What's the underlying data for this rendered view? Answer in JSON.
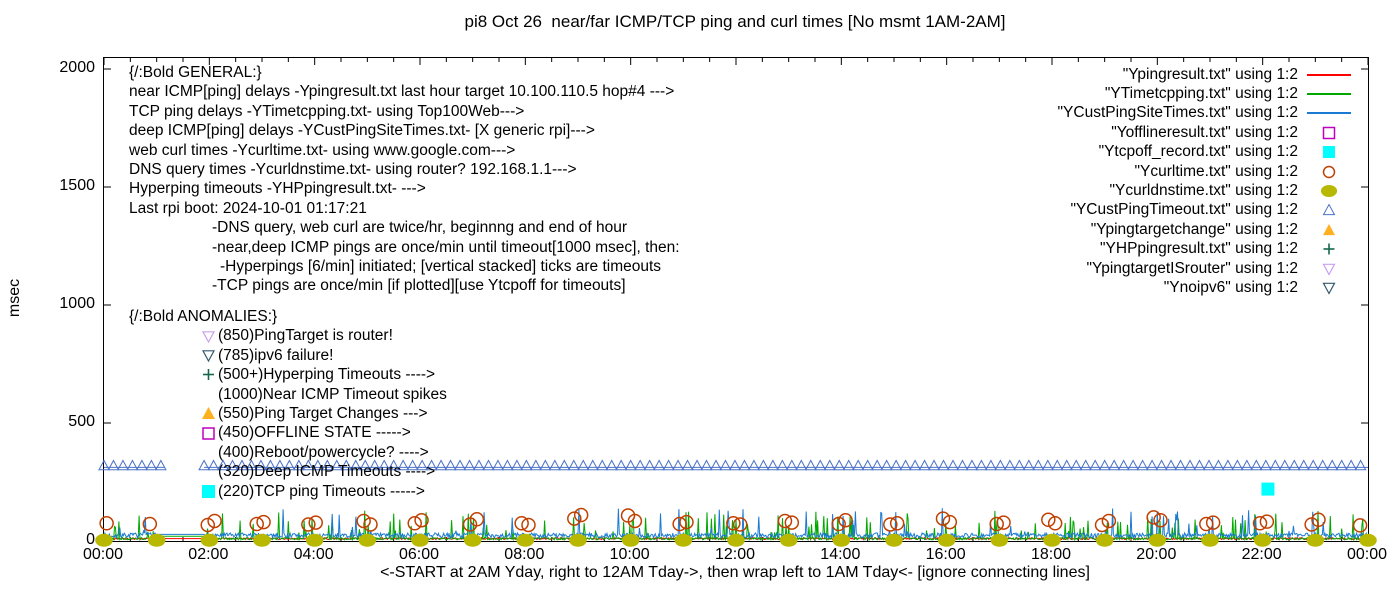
{
  "title": "pi8 Oct 26  near/far ICMP/TCP ping and curl times [No msmt 1AM-2AM]",
  "ylabel": "msec",
  "caption": "<-START at 2AM Yday, right to 12AM Tday->, then wrap left to 1AM Tday<- [ignore connecting lines]",
  "general": {
    "header": "{/:Bold GENERAL:}",
    "lines": [
      {
        "indent": 0,
        "text": "near ICMP[ping] delays -Ypingresult.txt last hour target 10.100.110.5 hop#4 --->"
      },
      {
        "indent": 0,
        "text": "TCP ping delays -YTimetcpping.txt- using Top100Web--->"
      },
      {
        "indent": 0,
        "text": "deep ICMP[ping] delays -YCustPingSiteTimes.txt- [X generic rpi]--->"
      },
      {
        "indent": 0,
        "text": "web curl times -Ycurltime.txt- using www.google.com--->"
      },
      {
        "indent": 0,
        "text": "DNS query times -Ycurldnstime.txt- using router? 192.168.1.1--->"
      },
      {
        "indent": 0,
        "text": "Hyperping timeouts -YHPpingresult.txt- --->"
      },
      {
        "indent": 0,
        "text": "Last rpi boot: 2024-10-01 01:17:21"
      },
      {
        "indent": 1,
        "text": "-DNS query, web curl are twice/hr, beginnng and end of hour"
      },
      {
        "indent": 1,
        "text": "-near,deep ICMP pings are once/min until timeout[1000 msec], then:"
      },
      {
        "indent": 2,
        "text": "-Hyperpings [6/min] initiated; [vertical stacked] ticks are timeouts"
      },
      {
        "indent": 1,
        "text": "-TCP pings are once/min [if plotted][use Ytcpoff for timeouts]"
      }
    ]
  },
  "anomalies": {
    "header": "{/:Bold ANOMALIES:}",
    "items": [
      {
        "marker": "tri-down-open",
        "color": "#c9a0ef",
        "text": "(850)PingTarget is router!"
      },
      {
        "marker": "tri-down-open",
        "color": "#33596f",
        "text": "(785)ipv6 failure!"
      },
      {
        "marker": "plus",
        "color": "#15684a",
        "text": "(500+)Hyperping Timeouts ---->"
      },
      {
        "marker": "none",
        "color": "",
        "text": "(1000)Near ICMP Timeout spikes"
      },
      {
        "marker": "tri-up-filled",
        "color": "#ffb020",
        "text": "(550)Ping Target Changes --->"
      },
      {
        "marker": "square-open",
        "color": "#bf00bf",
        "text": "(450)OFFLINE STATE ----->"
      },
      {
        "marker": "none",
        "color": "",
        "text": "(400)Reboot/powercycle? ---->"
      },
      {
        "marker": "none",
        "color": "",
        "text": "(320)Deep ICMP Timeouts ---->"
      },
      {
        "marker": "square-filled",
        "color": "#00ffff",
        "text": "(220)TCP ping Timeouts ----->"
      }
    ]
  },
  "legend": {
    "items": [
      {
        "label": "\"Ypingresult.txt\" using 1:2",
        "style": "line",
        "marker": "",
        "color": "#ff0000"
      },
      {
        "label": "\"YTimetcpping.txt\" using 1:2",
        "style": "line",
        "marker": "",
        "color": "#00a800"
      },
      {
        "label": "\"YCustPingSiteTimes.txt\" using 1:2",
        "style": "line",
        "marker": "",
        "color": "#1b7ad1"
      },
      {
        "label": "\"Yofflineresult.txt\" using 1:2",
        "style": "points",
        "marker": "square-open",
        "color": "#bf00bf"
      },
      {
        "label": "\"Ytcpoff_record.txt\" using 1:2",
        "style": "points",
        "marker": "square-filled",
        "color": "#00ffff"
      },
      {
        "label": "\"Ycurltime.txt\" using 1:2",
        "style": "points",
        "marker": "circle-open",
        "color": "#c04000"
      },
      {
        "label": "\"Ycurldnstime.txt\" using 1:2",
        "style": "points",
        "marker": "circle-filled",
        "color": "#b8b800"
      },
      {
        "label": "\"YCustPingTimeout.txt\" using 1:2",
        "style": "points",
        "marker": "tri-up-open",
        "color": "#4a72c8"
      },
      {
        "label": "\"Ypingtargetchange\" using 1:2",
        "style": "points",
        "marker": "tri-up-filled",
        "color": "#ffb020"
      },
      {
        "label": "\"YHPpingresult.txt\" using 1:2",
        "style": "points",
        "marker": "plus",
        "color": "#15684a"
      },
      {
        "label": "\"YpingtargetISrouter\" using 1:2",
        "style": "points",
        "marker": "tri-down-open",
        "color": "#c9a0ef"
      },
      {
        "label": "\"Ynoipv6\" using 1:2",
        "style": "points",
        "marker": "tri-down-open",
        "color": "#33596f"
      }
    ]
  },
  "chart_data": {
    "type": "mixed-time-series",
    "title": "pi8 Oct 26  near/far ICMP/TCP ping and curl times [No msmt 1AM-2AM]",
    "xlabel": "<-START at 2AM Yday, right to 12AM Tday->, then wrap left to 1AM Tday<- [ignore connecting lines]",
    "ylabel": "msec",
    "xlim_hours": [
      0,
      24
    ],
    "ylim": [
      0,
      2000
    ],
    "ytick_values": [
      0,
      500,
      1000,
      1500,
      2000
    ],
    "xtick_hours": [
      0,
      2,
      4,
      6,
      8,
      10,
      12,
      14,
      16,
      18,
      20,
      22,
      24
    ],
    "xtick_labels": [
      "00:00",
      "02:00",
      "04:00",
      "06:00",
      "08:00",
      "10:00",
      "12:00",
      "14:00",
      "16:00",
      "18:00",
      "20:00",
      "22:00",
      "00:00"
    ],
    "minor_xtick_step_hours": 0.5,
    "grid": false,
    "legend_position": "inside top right",
    "no_measurement_gap_hours": [
      1.0,
      1.9
    ],
    "series": [
      {
        "name": "Ypingresult.txt",
        "kind": "noise-line",
        "color": "#ff0000",
        "baseline_msec": 10,
        "jitter_msec": 4,
        "spike_prob": 0,
        "spike_range_msec": [
          0,
          0
        ],
        "gap_hours": [
          1.0,
          1.9
        ],
        "gap_level_msec": 10,
        "seed": 21
      },
      {
        "name": "YTimetcpping.txt",
        "kind": "noise-line",
        "color": "#00a800",
        "baseline_msec": 10,
        "jitter_msec": 5,
        "spike_prob": 0.09,
        "spike_range_msec": [
          30,
          130
        ],
        "gap_hours": [
          1.0,
          1.9
        ],
        "gap_level_msec": 20,
        "seed": 13
      },
      {
        "name": "YCustPingSiteTimes.txt",
        "kind": "noise-line",
        "color": "#1b7ad1",
        "baseline_msec": 24,
        "jitter_msec": 10,
        "spike_prob": 0.05,
        "spike_range_msec": [
          40,
          140
        ],
        "gap_hours": [
          1.0,
          1.9
        ],
        "gap_level_msec": 28,
        "seed": 7
      },
      {
        "name": "Yofflineresult.txt",
        "kind": "points",
        "marker": "square-open",
        "color": "#bf00bf",
        "points": []
      },
      {
        "name": "Ytcpoff_record.txt",
        "kind": "points",
        "marker": "square-filled",
        "color": "#00ffff",
        "points": [
          [
            22.1,
            220
          ]
        ]
      },
      {
        "name": "Ycurltime.txt",
        "kind": "points",
        "marker": "circle-open",
        "color": "#c04000",
        "points": [
          [
            0.05,
            75
          ],
          [
            0.87,
            72
          ],
          [
            1.97,
            68
          ],
          [
            2.1,
            85
          ],
          [
            2.9,
            72
          ],
          [
            3.03,
            80
          ],
          [
            3.88,
            70
          ],
          [
            4.02,
            78
          ],
          [
            4.93,
            85
          ],
          [
            5.06,
            70
          ],
          [
            5.9,
            75
          ],
          [
            6.03,
            88
          ],
          [
            6.95,
            70
          ],
          [
            7.08,
            92
          ],
          [
            7.93,
            75
          ],
          [
            8.06,
            68
          ],
          [
            8.93,
            95
          ],
          [
            9.06,
            110
          ],
          [
            9.95,
            108
          ],
          [
            10.08,
            85
          ],
          [
            10.93,
            72
          ],
          [
            11.06,
            80
          ],
          [
            11.95,
            75
          ],
          [
            12.08,
            70
          ],
          [
            12.93,
            85
          ],
          [
            13.06,
            78
          ],
          [
            13.95,
            72
          ],
          [
            14.08,
            88
          ],
          [
            14.93,
            70
          ],
          [
            15.06,
            75
          ],
          [
            15.93,
            95
          ],
          [
            16.06,
            80
          ],
          [
            16.95,
            72
          ],
          [
            17.08,
            78
          ],
          [
            17.93,
            90
          ],
          [
            18.06,
            75
          ],
          [
            18.95,
            68
          ],
          [
            19.08,
            85
          ],
          [
            19.93,
            100
          ],
          [
            20.06,
            88
          ],
          [
            20.93,
            72
          ],
          [
            21.06,
            78
          ],
          [
            21.95,
            75
          ],
          [
            22.08,
            82
          ],
          [
            22.93,
            70
          ],
          [
            23.06,
            90
          ],
          [
            23.85,
            66
          ]
        ]
      },
      {
        "name": "Ycurldnstime.txt",
        "kind": "points",
        "marker": "circle-filled",
        "color": "#b8b800",
        "points": [
          [
            0,
            3
          ],
          [
            1,
            3
          ],
          [
            2,
            3
          ],
          [
            3,
            3
          ],
          [
            4,
            3
          ],
          [
            5,
            3
          ],
          [
            6,
            3
          ],
          [
            7,
            3
          ],
          [
            8,
            3
          ],
          [
            9,
            3
          ],
          [
            10,
            3
          ],
          [
            11,
            3
          ],
          [
            12,
            3
          ],
          [
            13,
            3
          ],
          [
            14,
            3
          ],
          [
            15,
            3
          ],
          [
            16,
            3
          ],
          [
            17,
            3
          ],
          [
            18,
            3
          ],
          [
            19,
            3
          ],
          [
            20,
            3
          ],
          [
            21,
            3
          ],
          [
            22,
            3
          ],
          [
            23,
            3
          ],
          [
            24,
            3
          ]
        ]
      },
      {
        "name": "YCustPingTimeout.txt",
        "kind": "marker-row",
        "marker": "tri-up-open",
        "color": "#4a72c8",
        "row_msec": 320,
        "segments_hours": [
          [
            0,
            1.15
          ],
          [
            1.9,
            24
          ]
        ],
        "spacing_hours": 0.18,
        "connecting_line_msec": 312
      },
      {
        "name": "Ypingtargetchange",
        "kind": "points",
        "marker": "tri-up-filled",
        "color": "#ffb020",
        "points": []
      },
      {
        "name": "YHPpingresult.txt",
        "kind": "points",
        "marker": "plus",
        "color": "#15684a",
        "points": []
      },
      {
        "name": "YpingtargetISrouter",
        "kind": "points",
        "marker": "tri-down-open",
        "color": "#c9a0ef",
        "points": []
      },
      {
        "name": "Ynoipv6",
        "kind": "points",
        "marker": "tri-down-open",
        "color": "#33596f",
        "points": []
      }
    ]
  }
}
